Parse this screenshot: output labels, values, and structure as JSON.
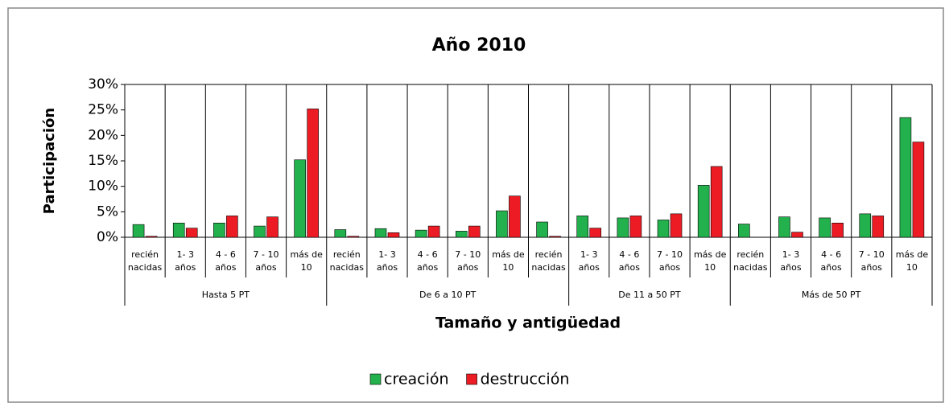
{
  "chart_data": {
    "type": "bar",
    "title": "Año 2010",
    "y_label": "Participación",
    "x_label": "Tamaño y antigüedad",
    "groups": [
      {
        "label": "Hasta 5 PT",
        "categories": [
          "recién\nnacidas",
          "1- 3\naños",
          "4 - 6\naños",
          "7 - 10\naños",
          "más de\n10"
        ]
      },
      {
        "label": "De 6 a 10 PT",
        "categories": [
          "recién\nnacidas",
          "1- 3\naños",
          "4 - 6\naños",
          "7 - 10\naños",
          "más de\n10",
          "recién\nnacidas"
        ]
      },
      {
        "label": "De 11 a 50 PT",
        "categories": [
          "1- 3\naños",
          "4 - 6\naños",
          "7 - 10\naños",
          "más de\n10"
        ]
      },
      {
        "label": "Más de 50 PT",
        "categories": [
          "recién\nnacidas",
          "1- 3\naños",
          "4 - 6\naños",
          "7 - 10\naños",
          "más de\n10"
        ]
      }
    ],
    "series": [
      {
        "name": "creación",
        "color": "#22b14c",
        "values": [
          2.5,
          2.8,
          2.8,
          2.2,
          15.2,
          1.5,
          1.7,
          1.4,
          1.2,
          5.2,
          3.0,
          4.2,
          3.8,
          3.4,
          10.2,
          2.6,
          4.0,
          3.8,
          4.6,
          23.5
        ]
      },
      {
        "name": "destrucción",
        "color": "#ed1c24",
        "values": [
          0.2,
          1.8,
          4.2,
          4.0,
          25.2,
          0.2,
          0.9,
          2.2,
          2.2,
          8.1,
          0.2,
          1.8,
          4.2,
          4.6,
          13.9,
          0,
          1.0,
          2.8,
          4.2,
          18.7
        ]
      }
    ],
    "ylim": [
      0,
      30
    ],
    "yticks": [
      {
        "value": 0,
        "label": "0%"
      },
      {
        "value": 5,
        "label": "5%"
      },
      {
        "value": 10,
        "label": "10%"
      },
      {
        "value": 15,
        "label": "15%"
      },
      {
        "value": 20,
        "label": "20%"
      },
      {
        "value": 25,
        "label": "25%"
      },
      {
        "value": 30,
        "label": "30%"
      }
    ],
    "legend": "bottom"
  }
}
